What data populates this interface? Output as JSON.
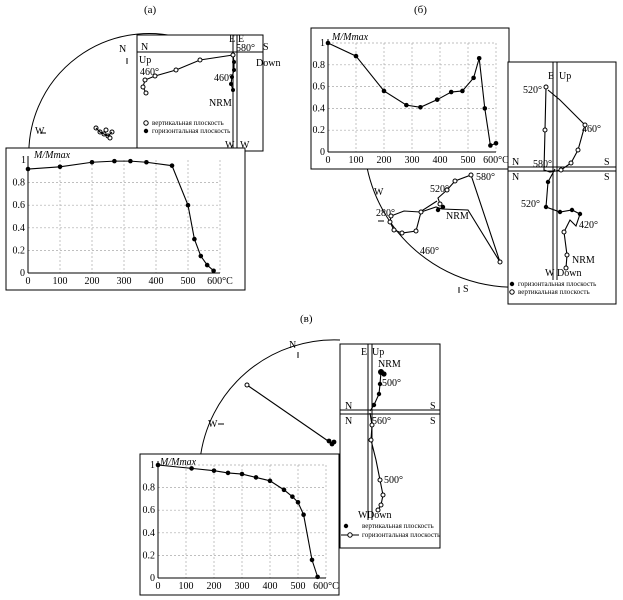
{
  "panels": {
    "a": {
      "label": "(а)",
      "stereo": {
        "N": "N",
        "W": "W"
      },
      "zijd": {
        "N": "N",
        "E1": "E",
        "E2": "E",
        "S": "S",
        "Up": "Up",
        "Down": "Down",
        "W1": "W",
        "W2": "W",
        "t1": "580°",
        "t2": "460°",
        "t3": "460°",
        "nrm": "NRM"
      },
      "legend": {
        "open": "вертикальная плоскость",
        "filled": "горизонтальная плоскость"
      }
    },
    "b": {
      "label": "(б)",
      "stereo": {
        "W": "W",
        "S": "S",
        "t1": "520°",
        "t2": "580°",
        "t3": "280°",
        "t4": "460°",
        "nrm": "NRM"
      },
      "zijd": {
        "E": "E",
        "Up": "Up",
        "N1": "N",
        "N2": "N",
        "S1": "S",
        "S2": "S",
        "W": "W",
        "Down": "Down",
        "t1": "520°",
        "t2": "460°",
        "t3": "580°",
        "t4": "520°",
        "t5": "420°",
        "nrm": "NRM"
      },
      "legend": {
        "filled": "горизонтальная плоскость",
        "open": "вертикальная плоскость"
      }
    },
    "c": {
      "label": "(в)",
      "stereo": {
        "N": "N",
        "W": "W"
      },
      "zijd": {
        "E": "E",
        "Up": "Up",
        "N1": "N",
        "N2": "N",
        "S1": "S",
        "S2": "S",
        "W": "W",
        "Down": "Down",
        "nrm": "NRM",
        "t1": "500°",
        "t2": "560°",
        "t3": "500°"
      },
      "legend": {
        "filled": "вертикальная плоскость",
        "open": "горизонтальная плоскость"
      }
    }
  },
  "chart_data": [
    {
      "type": "line",
      "panel": "a",
      "ylabel": "M/Mmax",
      "x": [
        0,
        100,
        200,
        270,
        320,
        370,
        450,
        500,
        520,
        540,
        560,
        580
      ],
      "y": [
        0.92,
        0.94,
        0.98,
        0.99,
        0.99,
        0.98,
        0.95,
        0.6,
        0.3,
        0.15,
        0.07,
        0.02
      ],
      "xticks": [
        0,
        100,
        200,
        300,
        400,
        500
      ],
      "xtick_labels": [
        "0",
        "100",
        "200",
        "300",
        "400",
        "500"
      ],
      "xunit": "600°C",
      "yticks": [
        0,
        0.2,
        0.4,
        0.6,
        0.8
      ],
      "ytick_labels": [
        "0",
        "0.2",
        "0.4",
        "0.6",
        "0.8"
      ],
      "ytop_label": "1",
      "xlim": [
        0,
        600
      ],
      "ylim": [
        0,
        1
      ]
    },
    {
      "type": "line",
      "panel": "b",
      "ylabel": "M/Mmax",
      "x": [
        0,
        100,
        200,
        280,
        330,
        390,
        440,
        480,
        520,
        540,
        560,
        580,
        600
      ],
      "y": [
        1.0,
        0.88,
        0.56,
        0.43,
        0.41,
        0.48,
        0.55,
        0.56,
        0.68,
        0.86,
        0.4,
        0.06,
        0.08
      ],
      "xticks": [
        0,
        100,
        200,
        300,
        400,
        500
      ],
      "xtick_labels": [
        "0",
        "100",
        "200",
        "300",
        "400",
        "500"
      ],
      "xunit": "600°C",
      "yticks": [
        0,
        0.2,
        0.4,
        0.6,
        0.8,
        1.0
      ],
      "ytick_labels": [
        "0",
        "0.2",
        "0.4",
        "0.6",
        "0.8",
        "1"
      ],
      "xlim": [
        0,
        600
      ],
      "ylim": [
        0,
        1
      ]
    },
    {
      "type": "line",
      "panel": "c",
      "ylabel": "M/Mmax",
      "x": [
        0,
        120,
        200,
        250,
        300,
        350,
        400,
        450,
        480,
        500,
        520,
        550,
        570
      ],
      "y": [
        1.0,
        0.97,
        0.95,
        0.93,
        0.92,
        0.89,
        0.86,
        0.78,
        0.72,
        0.67,
        0.56,
        0.16,
        0.01
      ],
      "xticks": [
        0,
        100,
        200,
        300,
        400,
        500
      ],
      "xtick_labels": [
        "0",
        "100",
        "200",
        "300",
        "400",
        "500"
      ],
      "xunit": "600°C",
      "yticks": [
        0,
        0.2,
        0.4,
        0.6,
        0.8,
        1.0
      ],
      "ytick_labels": [
        "0",
        "0.2",
        "0.4",
        "0.6",
        "0.8",
        "1"
      ],
      "xlim": [
        0,
        600
      ],
      "ylim": [
        0,
        1
      ]
    }
  ]
}
